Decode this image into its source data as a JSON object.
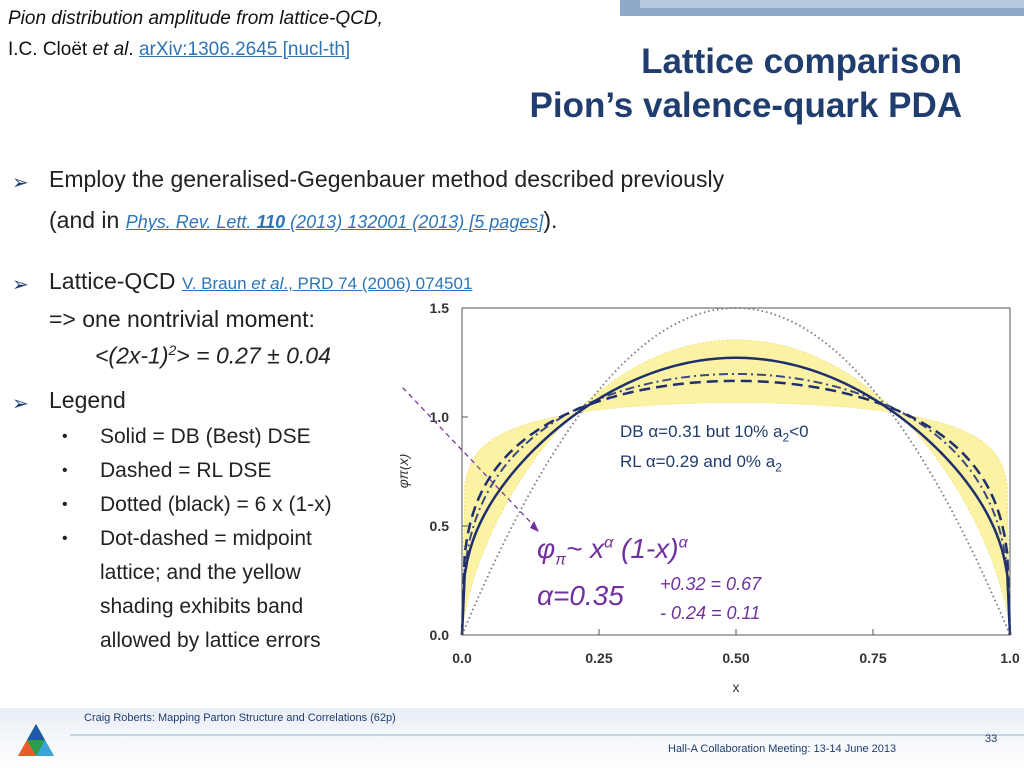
{
  "header": {
    "ref_line1": "Pion distribution amplitude from lattice-QCD,",
    "ref_author_prefix": "I.C. Cloët ",
    "ref_author_etal": "et al",
    "ref_author_dot": ". ",
    "ref_link": "arXiv:1306.2645 [nucl-th]",
    "title_line1": "Lattice comparison",
    "title_line2": "Pion’s valence-quark PDA"
  },
  "bullets": {
    "b1_line1": "Employ the generalised-Gegenbauer method described previously",
    "b1_line2_prefix": "(and in ",
    "b1_cite_a": "Phys. Rev. Lett. ",
    "b1_cite_bold": "110",
    "b1_cite_b": " (2013) 132001 (2013) [5 pages]",
    "b1_line2_suffix": ").",
    "b2_label": "Lattice-QCD ",
    "b2_cite_a": "V. Braun ",
    "b2_cite_etal": "et al",
    "b2_cite_b": "., PRD 74 (2006) 074501",
    "b2_line2": "=> one nontrivial moment:",
    "b2_moment_a": "<(2x-1)",
    "b2_moment_sup": "2",
    "b2_moment_b": "> = 0.27 ± 0.04",
    "b3_label": "Legend",
    "legend_items": [
      "Solid = DB (Best) DSE",
      "Dashed = RL DSE",
      "Dotted (black) = 6 x (1-x)",
      "Dot-dashed = midpoint",
      "lattice; and the yellow",
      "shading exhibits band",
      "allowed by lattice errors"
    ],
    "bullet_dot": "•"
  },
  "annotations": {
    "db_text_a": "DB α=0.31 but 10% a",
    "db_sub": "2",
    "db_text_b": "<0",
    "rl_text_a": "RL  α=0.29 and 0% a",
    "rl_sub": "2",
    "formula_phi": "φ",
    "formula_pi": "π",
    "formula_tilde": "~ x",
    "formula_alpha_sup": "α",
    "formula_mid": " (1-x)",
    "formula_alpha_sup2": "α",
    "formula_alpha_eq": "α=0.35",
    "formula_up": "+0.32 = 0.67",
    "formula_dn": "- 0.24 = 0.11"
  },
  "footer": {
    "author": "Craig Roberts: Mapping Parton Structure and Correlations (62p)",
    "meeting": "Hall-A Collaboration Meeting: 13-14 June 2013",
    "page": "33"
  },
  "colors": {
    "title": "#1f3d6e",
    "link": "#2e74b5",
    "formula": "#7030a0",
    "band": "#fbf3a3",
    "curve": "#1f2f6e",
    "dotted": "#666666"
  },
  "chart_data": {
    "type": "line",
    "xlabel": "x",
    "ylabel": "φπ(x)",
    "xlim": [
      0,
      1
    ],
    "ylim": [
      0,
      1.5
    ],
    "x_ticks": [
      "0.0",
      "0.25",
      "0.50",
      "0.75",
      "1.0"
    ],
    "y_ticks": [
      "0.0",
      "0.5",
      "1.0",
      "1.5"
    ],
    "series": [
      {
        "name": "Solid = DB (Best) DSE",
        "style": "solid",
        "alpha": 0.31,
        "a2": -0.1
      },
      {
        "name": "Dashed = RL DSE",
        "style": "dashed",
        "alpha": 0.29,
        "a2": 0.0
      },
      {
        "name": "Dotted (black) = 6 x (1-x)",
        "style": "dotted",
        "alpha": 1.0,
        "a2": 0.0
      },
      {
        "name": "Dot-dashed = midpoint lattice",
        "style": "dotdash",
        "alpha": 0.35,
        "a2": 0.0
      }
    ],
    "band": {
      "alpha_low": 0.11,
      "alpha_high": 0.67
    }
  }
}
